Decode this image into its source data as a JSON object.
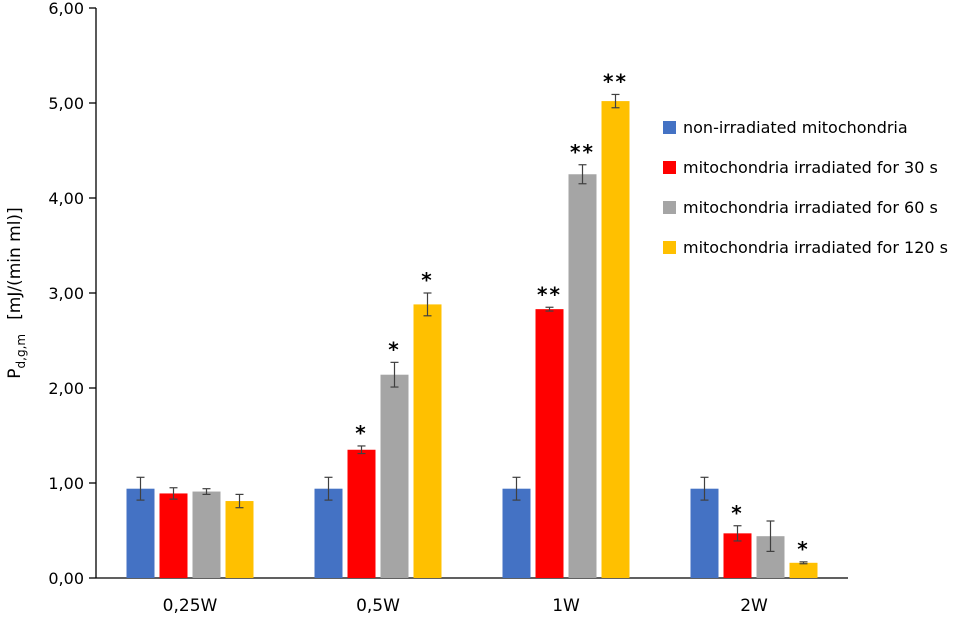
{
  "chart_data": {
    "type": "bar",
    "title": "",
    "xlabel": "",
    "ylabel": {
      "main": "P",
      "subscript": "d,g,m",
      "unit": "[mJ/(min ml)]"
    },
    "ylim": [
      0,
      6
    ],
    "ytick_labels": [
      "0,00",
      "1,00",
      "2,00",
      "3,00",
      "4,00",
      "5,00",
      "6,00"
    ],
    "categories": [
      "0,25W",
      "0,5W",
      "1W",
      "2W"
    ],
    "grid": false,
    "legend_position": "right",
    "series": [
      {
        "name": "non-irradiated mitochondria",
        "color": "#4472C4",
        "values": [
          0.94,
          0.94,
          0.94,
          0.94
        ],
        "errors": [
          0.12,
          0.12,
          0.12,
          0.12
        ],
        "significance": [
          "",
          "",
          "",
          ""
        ]
      },
      {
        "name": "mitochondria irradiated for 30 s",
        "color": "#FF0000",
        "values": [
          0.89,
          1.35,
          2.83,
          0.47
        ],
        "errors": [
          0.06,
          0.04,
          0.02,
          0.08
        ],
        "significance": [
          "",
          "*",
          "**",
          "*"
        ]
      },
      {
        "name": "mitochondria irradiated for 60 s",
        "color": "#A5A5A5",
        "values": [
          0.91,
          2.14,
          4.25,
          0.44
        ],
        "errors": [
          0.03,
          0.13,
          0.1,
          0.16
        ],
        "significance": [
          "",
          "*",
          "**",
          ""
        ]
      },
      {
        "name": "mitochondria irradiated for 120 s",
        "color": "#FFC000",
        "values": [
          0.81,
          2.88,
          5.02,
          0.16
        ],
        "errors": [
          0.07,
          0.12,
          0.07,
          0.01
        ],
        "significance": [
          "",
          "*",
          "**",
          "*"
        ]
      }
    ]
  }
}
